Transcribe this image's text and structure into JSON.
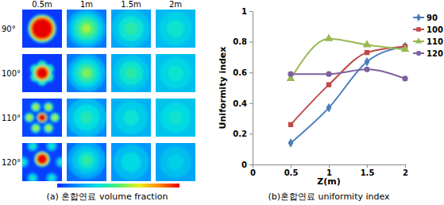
{
  "chart_data": [
    {
      "type": "contour",
      "caption": "(a) 혼합연료 volume fraction",
      "columns": [
        "0.5m",
        "1m",
        "1.5m",
        "2m"
      ],
      "rows": [
        "90°",
        "100°",
        "110°",
        "120°"
      ],
      "colorbar": {
        "range": [
          0,
          1
        ],
        "colors": [
          "#0a2cff",
          "#0096ff",
          "#00e0e0",
          "#50f070",
          "#e8f020",
          "#ff8a00",
          "#e80000"
        ]
      },
      "panels": [
        [
          {
            "background": 0.02,
            "spots": [
              {
                "x": 0.5,
                "y": 0.5,
                "levels": [
                  0.3,
                  0.55,
                  0.8,
                  1
                ],
                "radii": [
                  0.36,
                  0.33,
                  0.3,
                  0.26
                ]
              }
            ]
          },
          {
            "background": 0.12,
            "spots": [
              {
                "x": 0.5,
                "y": 0.5,
                "levels": [
                  0.2,
                  0.3,
                  0.4,
                  0.5,
                  0.6
                ],
                "radii": [
                  0.5,
                  0.4,
                  0.3,
                  0.2,
                  0.1
                ]
              }
            ]
          },
          {
            "background": 0.2,
            "spots": [
              {
                "x": 0.5,
                "y": 0.5,
                "levels": [
                  0.27,
                  0.35,
                  0.42
                ],
                "radii": [
                  0.48,
                  0.32,
                  0.16
                ]
              }
            ]
          },
          {
            "background": 0.25,
            "spots": [
              {
                "x": 0.5,
                "y": 0.5,
                "levels": [
                  0.3,
                  0.36
                ],
                "radii": [
                  0.42,
                  0.22
                ]
              }
            ]
          }
        ],
        [
          {
            "background": 0.02,
            "spots": [
              {
                "x": 0.5,
                "y": 0.3,
                "levels": [
                  0.3,
                  0.45
                ],
                "radii": [
                  0.13,
                  0.09
                ]
              },
              {
                "x": 0.67,
                "y": 0.4,
                "levels": [
                  0.3,
                  0.45
                ],
                "radii": [
                  0.13,
                  0.09
                ]
              },
              {
                "x": 0.67,
                "y": 0.6,
                "levels": [
                  0.3,
                  0.45
                ],
                "radii": [
                  0.13,
                  0.09
                ]
              },
              {
                "x": 0.5,
                "y": 0.7,
                "levels": [
                  0.3,
                  0.45
                ],
                "radii": [
                  0.13,
                  0.09
                ]
              },
              {
                "x": 0.33,
                "y": 0.6,
                "levels": [
                  0.3,
                  0.45
                ],
                "radii": [
                  0.13,
                  0.09
                ]
              },
              {
                "x": 0.33,
                "y": 0.4,
                "levels": [
                  0.3,
                  0.45
                ],
                "radii": [
                  0.13,
                  0.09
                ]
              },
              {
                "x": 0.5,
                "y": 0.5,
                "levels": [
                  0.35,
                  0.6,
                  0.85,
                  1
                ],
                "radii": [
                  0.24,
                  0.2,
                  0.17,
                  0.14
                ]
              }
            ]
          },
          {
            "background": 0.12,
            "spots": [
              {
                "x": 0.5,
                "y": 0.5,
                "levels": [
                  0.22,
                  0.32,
                  0.42,
                  0.55
                ],
                "radii": [
                  0.48,
                  0.36,
                  0.24,
                  0.12
                ]
              }
            ]
          },
          {
            "background": 0.22,
            "spots": [
              {
                "x": 0.5,
                "y": 0.5,
                "levels": [
                  0.28,
                  0.36,
                  0.42
                ],
                "radii": [
                  0.45,
                  0.3,
                  0.15
                ]
              }
            ]
          },
          {
            "background": 0.26,
            "spots": [
              {
                "x": 0.5,
                "y": 0.5,
                "levels": [
                  0.31,
                  0.36
                ],
                "radii": [
                  0.4,
                  0.2
                ]
              }
            ]
          }
        ],
        [
          {
            "background": 0.04,
            "spots": [
              {
                "x": 0.82,
                "y": 0.5,
                "levels": [
                  0.25,
                  0.45,
                  0.6
                ],
                "radii": [
                  0.13,
                  0.1,
                  0.06
                ]
              },
              {
                "x": 0.66,
                "y": 0.223,
                "levels": [
                  0.25,
                  0.45,
                  0.6
                ],
                "radii": [
                  0.13,
                  0.1,
                  0.06
                ]
              },
              {
                "x": 0.34,
                "y": 0.223,
                "levels": [
                  0.25,
                  0.45,
                  0.6
                ],
                "radii": [
                  0.13,
                  0.1,
                  0.06
                ]
              },
              {
                "x": 0.18,
                "y": 0.5,
                "levels": [
                  0.25,
                  0.45,
                  0.6
                ],
                "radii": [
                  0.13,
                  0.1,
                  0.06
                ]
              },
              {
                "x": 0.34,
                "y": 0.777,
                "levels": [
                  0.25,
                  0.45,
                  0.6
                ],
                "radii": [
                  0.13,
                  0.1,
                  0.06
                ]
              },
              {
                "x": 0.66,
                "y": 0.777,
                "levels": [
                  0.25,
                  0.45,
                  0.6
                ],
                "radii": [
                  0.13,
                  0.1,
                  0.06
                ]
              },
              {
                "x": 0.5,
                "y": 0.5,
                "levels": [
                  0.3,
                  0.6,
                  0.9,
                  1
                ],
                "radii": [
                  0.14,
                  0.12,
                  0.1,
                  0.08
                ]
              }
            ]
          },
          {
            "background": 0.15,
            "spots": [
              {
                "x": 0.5,
                "y": 0.5,
                "levels": [
                  0.25,
                  0.33,
                  0.4
                ],
                "radii": [
                  0.5,
                  0.33,
                  0.16
                ]
              }
            ]
          },
          {
            "background": 0.23,
            "spots": [
              {
                "x": 0.5,
                "y": 0.5,
                "levels": [
                  0.29,
                  0.35
                ],
                "radii": [
                  0.42,
                  0.2
                ]
              }
            ]
          },
          {
            "background": 0.27,
            "spots": [
              {
                "x": 0.5,
                "y": 0.5,
                "levels": [
                  0.32,
                  0.36
                ],
                "radii": [
                  0.38,
                  0.18
                ]
              }
            ]
          }
        ],
        [
          {
            "background": 0.03,
            "spots": [
              {
                "x": 0.98,
                "y": 0.5,
                "levels": [
                  0.2,
                  0.35
                ],
                "radii": [
                  0.14,
                  0.08
                ]
              },
              {
                "x": 0.74,
                "y": 0.08,
                "levels": [
                  0.2,
                  0.35
                ],
                "radii": [
                  0.14,
                  0.08
                ]
              },
              {
                "x": 0.26,
                "y": 0.08,
                "levels": [
                  0.2,
                  0.35
                ],
                "radii": [
                  0.14,
                  0.08
                ]
              },
              {
                "x": 0.02,
                "y": 0.5,
                "levels": [
                  0.2,
                  0.35
                ],
                "radii": [
                  0.14,
                  0.08
                ]
              },
              {
                "x": 0.26,
                "y": 0.92,
                "levels": [
                  0.2,
                  0.35
                ],
                "radii": [
                  0.14,
                  0.08
                ]
              },
              {
                "x": 0.74,
                "y": 0.92,
                "levels": [
                  0.2,
                  0.35
                ],
                "radii": [
                  0.14,
                  0.08
                ]
              },
              {
                "x": 0.5,
                "y": 0.42,
                "levels": [
                  0.35,
                  0.65,
                  0.9,
                  1
                ],
                "radii": [
                  0.2,
                  0.17,
                  0.14,
                  0.12
                ]
              }
            ]
          },
          {
            "background": 0.1,
            "spots": [
              {
                "x": 0.5,
                "y": 0.45,
                "levels": [
                  0.2,
                  0.28,
                  0.36,
                  0.45
                ],
                "radii": [
                  0.48,
                  0.35,
                  0.22,
                  0.1
                ]
              }
            ]
          },
          {
            "background": 0.17,
            "spots": [
              {
                "x": 0.5,
                "y": 0.5,
                "levels": [
                  0.25,
                  0.32
                ],
                "radii": [
                  0.45,
                  0.25
                ]
              }
            ]
          },
          {
            "background": 0.2,
            "spots": [
              {
                "x": 0.5,
                "y": 0.5,
                "levels": [
                  0.26,
                  0.3
                ],
                "radii": [
                  0.4,
                  0.2
                ]
              }
            ]
          }
        ]
      ]
    },
    {
      "type": "line",
      "caption": "(b)혼합연료 uniformity index",
      "x_label": "Z(m)",
      "y_label": "Uniformity index",
      "x": [
        0.5,
        1,
        1.5,
        2
      ],
      "xlim": [
        0,
        2
      ],
      "xticks": [
        0,
        0.5,
        1,
        1.5,
        2
      ],
      "ylim": [
        0,
        1
      ],
      "yticks": [
        0,
        0.2,
        0.4,
        0.6,
        0.8,
        1
      ],
      "legend": "right",
      "line_style": "smooth",
      "series": [
        {
          "name": "90",
          "color": "#4a7ebb",
          "marker": "diamond",
          "values": [
            0.14,
            0.37,
            0.67,
            0.77
          ]
        },
        {
          "name": "100",
          "color": "#be4b48",
          "marker": "square",
          "values": [
            0.26,
            0.52,
            0.73,
            0.77
          ]
        },
        {
          "name": "110",
          "color": "#98b954",
          "marker": "triangle",
          "values": [
            0.56,
            0.82,
            0.78,
            0.75
          ]
        },
        {
          "name": "120",
          "color": "#7d60a0",
          "marker": "circle",
          "values": [
            0.59,
            0.59,
            0.62,
            0.56
          ]
        }
      ]
    }
  ]
}
